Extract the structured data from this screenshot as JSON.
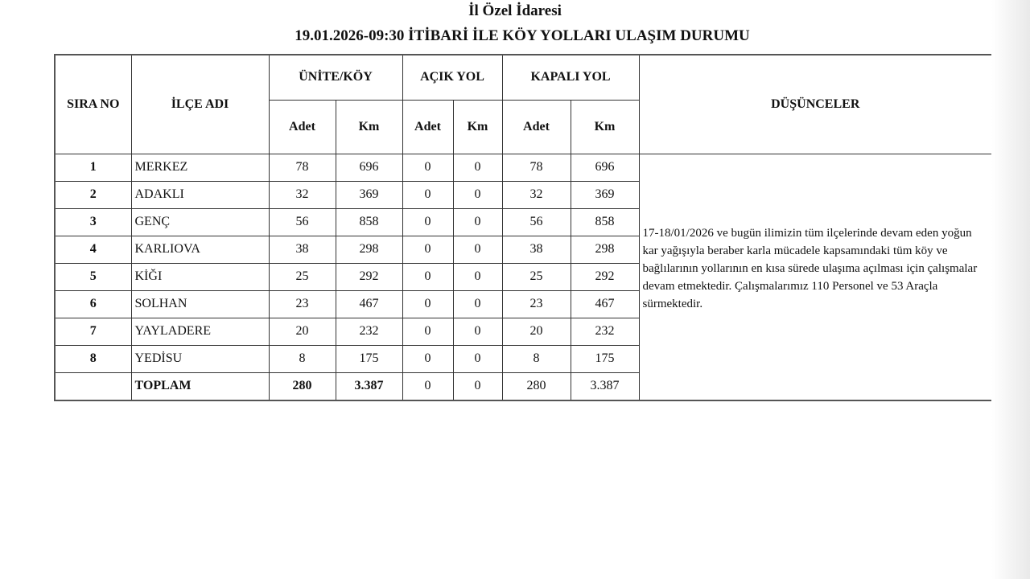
{
  "header": {
    "org": "İl Özel İdaresi",
    "title": "19.01.2026-09:30 İTİBARİ İLE KÖY YOLLARI ULAŞIM DURUMU"
  },
  "columns": {
    "sira": "SIRA NO",
    "ilce": "İLÇE ADI",
    "unite": "ÜNİTE/KÖY",
    "acik": "AÇIK YOL",
    "kapali": "KAPALI YOL",
    "dusunceler": "DÜŞÜNCELER",
    "adet": "Adet",
    "km": "Km"
  },
  "rows": [
    {
      "no": "1",
      "name": "MERKEZ",
      "u_adet": "78",
      "u_km": "696",
      "a_adet": "0",
      "a_km": "0",
      "k_adet": "78",
      "k_km": "696"
    },
    {
      "no": "2",
      "name": "ADAKLI",
      "u_adet": "32",
      "u_km": "369",
      "a_adet": "0",
      "a_km": "0",
      "k_adet": "32",
      "k_km": "369"
    },
    {
      "no": "3",
      "name": "GENÇ",
      "u_adet": "56",
      "u_km": "858",
      "a_adet": "0",
      "a_km": "0",
      "k_adet": "56",
      "k_km": "858"
    },
    {
      "no": "4",
      "name": "KARLIOVA",
      "u_adet": "38",
      "u_km": "298",
      "a_adet": "0",
      "a_km": "0",
      "k_adet": "38",
      "k_km": "298"
    },
    {
      "no": "5",
      "name": "KİĞI",
      "u_adet": "25",
      "u_km": "292",
      "a_adet": "0",
      "a_km": "0",
      "k_adet": "25",
      "k_km": "292"
    },
    {
      "no": "6",
      "name": "SOLHAN",
      "u_adet": "23",
      "u_km": "467",
      "a_adet": "0",
      "a_km": "0",
      "k_adet": "23",
      "k_km": "467"
    },
    {
      "no": "7",
      "name": "YAYLADERE",
      "u_adet": "20",
      "u_km": "232",
      "a_adet": "0",
      "a_km": "0",
      "k_adet": "20",
      "k_km": "232"
    },
    {
      "no": "8",
      "name": "YEDİSU",
      "u_adet": "8",
      "u_km": "175",
      "a_adet": "0",
      "a_km": "0",
      "k_adet": "8",
      "k_km": "175"
    }
  ],
  "total": {
    "name": "TOPLAM",
    "u_adet": "280",
    "u_km": "3.387",
    "a_adet": "0",
    "a_km": "0",
    "k_adet": "280",
    "k_km": "3.387"
  },
  "remarks": "17-18/01/2026 ve bugün ilimizin tüm ilçelerinde devam eden yoğun kar yağışıyla beraber karla mücadele kapsamındaki tüm köy ve bağlılarının yollarının en kısa sürede ulaşıma açılması için çalışmalar devam etmektedir. Çalışmalarımız 110 Personel ve 53 Araçla sürmektedir."
}
